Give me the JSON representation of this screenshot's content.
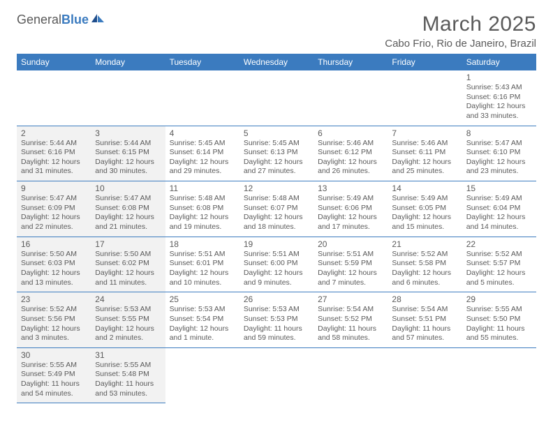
{
  "logo": {
    "general": "General",
    "blue": "Blue"
  },
  "title": "March 2025",
  "location": "Cabo Frio, Rio de Janeiro, Brazil",
  "colors": {
    "header_bg": "#3b7bbf",
    "header_text": "#ffffff",
    "border": "#3b7bbf",
    "shaded_bg": "#f2f2f2",
    "text": "#5a5a5a"
  },
  "weekdays": [
    "Sunday",
    "Monday",
    "Tuesday",
    "Wednesday",
    "Thursday",
    "Friday",
    "Saturday"
  ],
  "days": {
    "1": {
      "sunrise": "5:43 AM",
      "sunset": "6:16 PM",
      "daylight": "12 hours and 33 minutes."
    },
    "2": {
      "sunrise": "5:44 AM",
      "sunset": "6:16 PM",
      "daylight": "12 hours and 31 minutes."
    },
    "3": {
      "sunrise": "5:44 AM",
      "sunset": "6:15 PM",
      "daylight": "12 hours and 30 minutes."
    },
    "4": {
      "sunrise": "5:45 AM",
      "sunset": "6:14 PM",
      "daylight": "12 hours and 29 minutes."
    },
    "5": {
      "sunrise": "5:45 AM",
      "sunset": "6:13 PM",
      "daylight": "12 hours and 27 minutes."
    },
    "6": {
      "sunrise": "5:46 AM",
      "sunset": "6:12 PM",
      "daylight": "12 hours and 26 minutes."
    },
    "7": {
      "sunrise": "5:46 AM",
      "sunset": "6:11 PM",
      "daylight": "12 hours and 25 minutes."
    },
    "8": {
      "sunrise": "5:47 AM",
      "sunset": "6:10 PM",
      "daylight": "12 hours and 23 minutes."
    },
    "9": {
      "sunrise": "5:47 AM",
      "sunset": "6:09 PM",
      "daylight": "12 hours and 22 minutes."
    },
    "10": {
      "sunrise": "5:47 AM",
      "sunset": "6:08 PM",
      "daylight": "12 hours and 21 minutes."
    },
    "11": {
      "sunrise": "5:48 AM",
      "sunset": "6:08 PM",
      "daylight": "12 hours and 19 minutes."
    },
    "12": {
      "sunrise": "5:48 AM",
      "sunset": "6:07 PM",
      "daylight": "12 hours and 18 minutes."
    },
    "13": {
      "sunrise": "5:49 AM",
      "sunset": "6:06 PM",
      "daylight": "12 hours and 17 minutes."
    },
    "14": {
      "sunrise": "5:49 AM",
      "sunset": "6:05 PM",
      "daylight": "12 hours and 15 minutes."
    },
    "15": {
      "sunrise": "5:49 AM",
      "sunset": "6:04 PM",
      "daylight": "12 hours and 14 minutes."
    },
    "16": {
      "sunrise": "5:50 AM",
      "sunset": "6:03 PM",
      "daylight": "12 hours and 13 minutes."
    },
    "17": {
      "sunrise": "5:50 AM",
      "sunset": "6:02 PM",
      "daylight": "12 hours and 11 minutes."
    },
    "18": {
      "sunrise": "5:51 AM",
      "sunset": "6:01 PM",
      "daylight": "12 hours and 10 minutes."
    },
    "19": {
      "sunrise": "5:51 AM",
      "sunset": "6:00 PM",
      "daylight": "12 hours and 9 minutes."
    },
    "20": {
      "sunrise": "5:51 AM",
      "sunset": "5:59 PM",
      "daylight": "12 hours and 7 minutes."
    },
    "21": {
      "sunrise": "5:52 AM",
      "sunset": "5:58 PM",
      "daylight": "12 hours and 6 minutes."
    },
    "22": {
      "sunrise": "5:52 AM",
      "sunset": "5:57 PM",
      "daylight": "12 hours and 5 minutes."
    },
    "23": {
      "sunrise": "5:52 AM",
      "sunset": "5:56 PM",
      "daylight": "12 hours and 3 minutes."
    },
    "24": {
      "sunrise": "5:53 AM",
      "sunset": "5:55 PM",
      "daylight": "12 hours and 2 minutes."
    },
    "25": {
      "sunrise": "5:53 AM",
      "sunset": "5:54 PM",
      "daylight": "12 hours and 1 minute."
    },
    "26": {
      "sunrise": "5:53 AM",
      "sunset": "5:53 PM",
      "daylight": "11 hours and 59 minutes."
    },
    "27": {
      "sunrise": "5:54 AM",
      "sunset": "5:52 PM",
      "daylight": "11 hours and 58 minutes."
    },
    "28": {
      "sunrise": "5:54 AM",
      "sunset": "5:51 PM",
      "daylight": "11 hours and 57 minutes."
    },
    "29": {
      "sunrise": "5:55 AM",
      "sunset": "5:50 PM",
      "daylight": "11 hours and 55 minutes."
    },
    "30": {
      "sunrise": "5:55 AM",
      "sunset": "5:49 PM",
      "daylight": "11 hours and 54 minutes."
    },
    "31": {
      "sunrise": "5:55 AM",
      "sunset": "5:48 PM",
      "daylight": "11 hours and 53 minutes."
    }
  },
  "labels": {
    "sunrise": "Sunrise:",
    "sunset": "Sunset:",
    "daylight": "Daylight:"
  },
  "layout": {
    "first_weekday_index": 6,
    "num_days": 31,
    "shaded_columns": [
      0,
      1
    ]
  }
}
